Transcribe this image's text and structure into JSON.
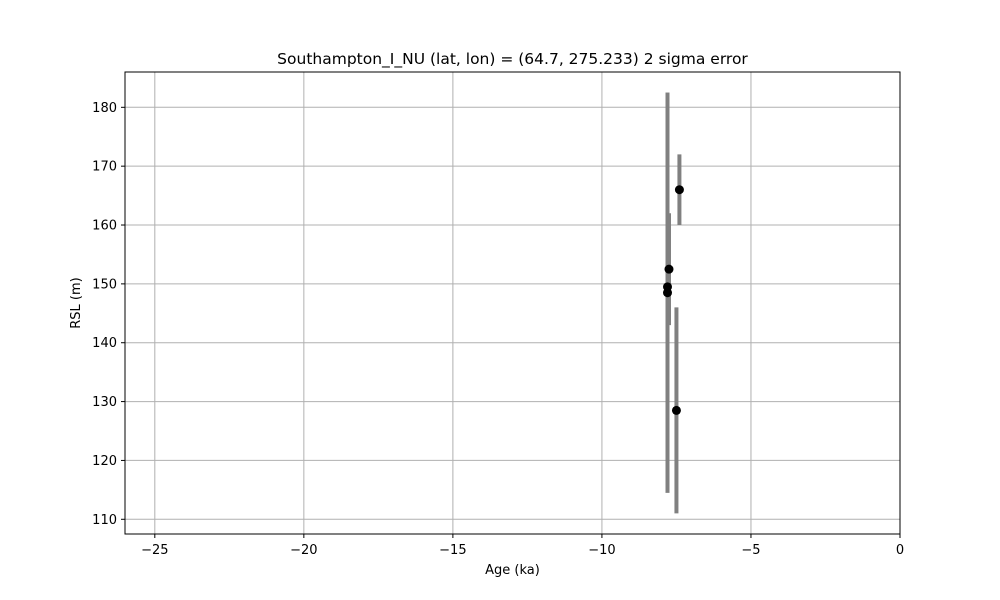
{
  "chart_data": {
    "type": "scatter",
    "title": "Southampton_I_NU (lat, lon) = (64.7, 275.233)  2 sigma error",
    "xlabel": "Age (ka)",
    "ylabel": "RSL (m)",
    "xlim": [
      -26,
      0
    ],
    "ylim": [
      107.5,
      186
    ],
    "xticks": [
      -25,
      -20,
      -15,
      -10,
      -5,
      0
    ],
    "yticks": [
      110,
      120,
      130,
      140,
      150,
      160,
      170,
      180
    ],
    "grid": true,
    "legend": "none",
    "colors": {
      "marker": "#000000",
      "errorbar": "#808080",
      "grid": "#b0b0b0"
    },
    "points": [
      {
        "x": -7.8,
        "y": 148.5,
        "yerr_low": 114.5,
        "yerr_high": 182.5
      },
      {
        "x": -7.8,
        "y": 149.5,
        "yerr_low": 114.5,
        "yerr_high": 182.5
      },
      {
        "x": -7.75,
        "y": 152.5,
        "yerr_low": 143,
        "yerr_high": 162
      },
      {
        "x": -7.4,
        "y": 166,
        "yerr_low": 160,
        "yerr_high": 172
      },
      {
        "x": -7.5,
        "y": 128.5,
        "yerr_low": 111,
        "yerr_high": 146
      }
    ]
  }
}
